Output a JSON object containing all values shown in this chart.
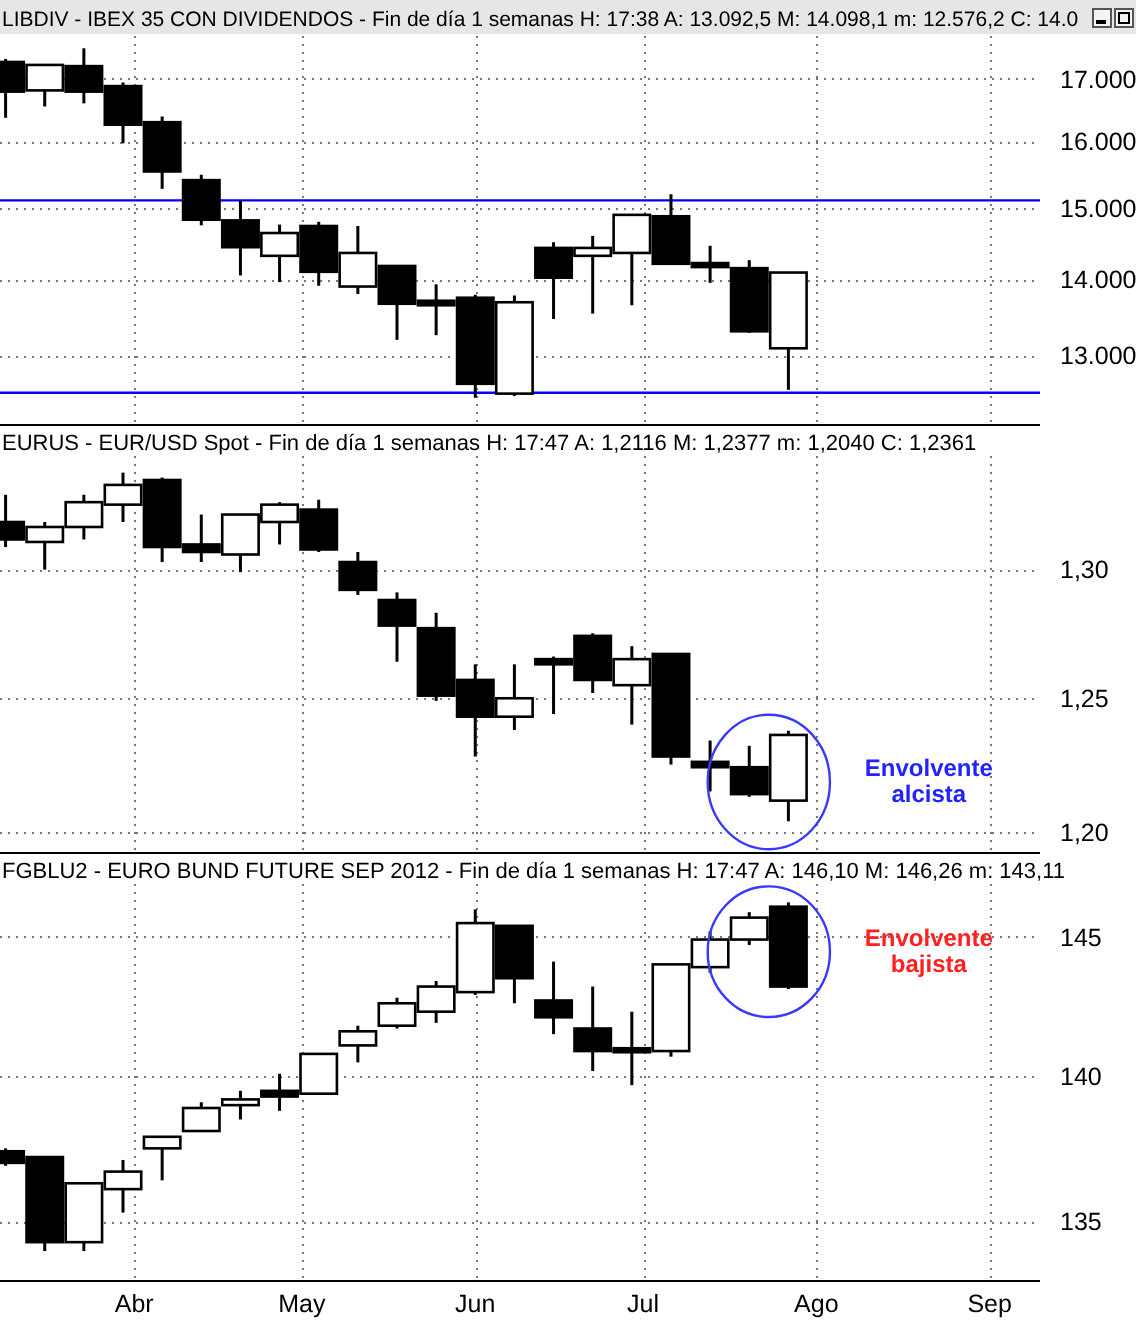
{
  "chart_data": [
    {
      "type": "candlestick",
      "title": "LIBDIV - IBEX 35 CON DIVIDENDOS - Fin de día 1 semanas  H: 17:38  A: 13.092,5  M: 14.098,1  m: 12.576,2  C: 14.0",
      "x": [
        "2012-03-09",
        "2012-03-16",
        "2012-03-23",
        "2012-03-30",
        "2012-04-06",
        "2012-04-13",
        "2012-04-20",
        "2012-04-27",
        "2012-05-04",
        "2012-05-11",
        "2012-05-18",
        "2012-05-25",
        "2012-06-01",
        "2012-06-08",
        "2012-06-15",
        "2012-06-22",
        "2012-06-29",
        "2012-07-06",
        "2012-07-13",
        "2012-07-20",
        "2012-07-27"
      ],
      "ohlc": [
        [
          17280,
          17330,
          16370,
          16790
        ],
        [
          16810,
          17230,
          16550,
          17230
        ],
        [
          17210,
          17510,
          16600,
          16790
        ],
        [
          16880,
          16940,
          15970,
          16260
        ],
        [
          16300,
          16390,
          15280,
          15540
        ],
        [
          15410,
          15490,
          14750,
          14830
        ],
        [
          14820,
          15110,
          14050,
          14440
        ],
        [
          14320,
          14760,
          13960,
          14640
        ],
        [
          14740,
          14800,
          13910,
          14100
        ],
        [
          13900,
          14740,
          13800,
          14360
        ],
        [
          14180,
          14180,
          13200,
          13670
        ],
        [
          13710,
          13930,
          13260,
          13650
        ],
        [
          13750,
          13790,
          12480,
          12650
        ],
        [
          12530,
          13780,
          12500,
          13690
        ],
        [
          14430,
          14510,
          13470,
          14020
        ],
        [
          14320,
          14600,
          13540,
          14430
        ],
        [
          14360,
          14900,
          13650,
          14900
        ],
        [
          14880,
          15200,
          14210,
          14210
        ],
        [
          14220,
          14460,
          13950,
          14200
        ],
        [
          14150,
          14260,
          13290,
          13310
        ],
        [
          13092.5,
          14098.1,
          12576.2,
          14090
        ]
      ],
      "xlim": [
        "2012-03-08",
        "2012-09-10"
      ],
      "xticks": [
        {
          "value": "2012-04-01",
          "label": null
        },
        {
          "value": "2012-05-01",
          "label": null
        },
        {
          "value": "2012-06-01",
          "label": null
        },
        {
          "value": "2012-07-01",
          "label": null
        },
        {
          "value": "2012-08-01",
          "label": null
        },
        {
          "value": "2012-09-01",
          "label": null
        }
      ],
      "ylim": [
        12190,
        17720
      ],
      "yticks": [
        {
          "value": 13000,
          "label": "13.000"
        },
        {
          "value": 14000,
          "label": "14.000"
        },
        {
          "value": 15000,
          "label": "15.000"
        },
        {
          "value": 16000,
          "label": "16.000"
        },
        {
          "value": 17000,
          "label": "17.000"
        }
      ],
      "log": true,
      "grid": true,
      "tick_labels": "y",
      "ref_lines": [
        {
          "axis": "y",
          "value": 15110,
          "color": "#0000ff"
        },
        {
          "axis": "y",
          "value": 12540,
          "color": "#0000ff"
        }
      ]
    },
    {
      "type": "candlestick",
      "title": "EURUS - EUR/USD Spot - Fin de día 1 semanas  H: 17:47  A: 1,2116  M: 1,2377  m: 1,2040  C: 1,2361",
      "x": [
        "2012-03-09",
        "2012-03-16",
        "2012-03-23",
        "2012-03-30",
        "2012-04-06",
        "2012-04-13",
        "2012-04-20",
        "2012-04-27",
        "2012-05-04",
        "2012-05-11",
        "2012-05-18",
        "2012-05-25",
        "2012-06-01",
        "2012-06-08",
        "2012-06-15",
        "2012-06-22",
        "2012-06-29",
        "2012-07-06",
        "2012-07-13",
        "2012-07-20",
        "2012-07-27"
      ],
      "ohlc": [
        [
          1.319,
          1.33,
          1.309,
          1.312
        ],
        [
          1.311,
          1.319,
          1.3,
          1.317
        ],
        [
          1.317,
          1.33,
          1.312,
          1.327
        ],
        [
          1.326,
          1.339,
          1.319,
          1.334
        ],
        [
          1.336,
          1.337,
          1.303,
          1.309
        ],
        [
          1.31,
          1.322,
          1.303,
          1.307
        ],
        [
          1.306,
          1.322,
          1.299,
          1.322
        ],
        [
          1.319,
          1.327,
          1.31,
          1.326
        ],
        [
          1.324,
          1.328,
          1.307,
          1.308
        ],
        [
          1.303,
          1.307,
          1.29,
          1.292
        ],
        [
          1.288,
          1.291,
          1.264,
          1.278
        ],
        [
          1.277,
          1.283,
          1.249,
          1.251
        ],
        [
          1.257,
          1.263,
          1.228,
          1.243
        ],
        [
          1.243,
          1.263,
          1.238,
          1.25
        ],
        [
          1.265,
          1.266,
          1.244,
          1.263
        ],
        [
          1.274,
          1.275,
          1.252,
          1.257
        ],
        [
          1.255,
          1.27,
          1.24,
          1.265
        ],
        [
          1.267,
          1.267,
          1.225,
          1.228
        ],
        [
          1.226,
          1.234,
          1.215,
          1.224
        ],
        [
          1.224,
          1.232,
          1.213,
          1.214
        ],
        [
          1.2116,
          1.2377,
          1.204,
          1.2361
        ]
      ],
      "xlim": [
        "2012-03-08",
        "2012-09-10"
      ],
      "xticks": [
        {
          "value": "2012-04-01",
          "label": null
        },
        {
          "value": "2012-05-01",
          "label": null
        },
        {
          "value": "2012-06-01",
          "label": null
        },
        {
          "value": "2012-07-01",
          "label": null
        },
        {
          "value": "2012-08-01",
          "label": null
        },
        {
          "value": "2012-09-01",
          "label": null
        }
      ],
      "ylim": [
        1.1935,
        1.359
      ],
      "yticks": [
        {
          "value": 1.2,
          "label": "1,20"
        },
        {
          "value": 1.25,
          "label": "1,25"
        },
        {
          "value": 1.3,
          "label": "1,30"
        }
      ],
      "log": true,
      "grid": true,
      "tick_labels": "y",
      "annotations": [
        "Envolvente alcista"
      ]
    },
    {
      "type": "candlestick",
      "title": "FGBLU2 - EURO BUND FUTURE  SEP 2012 - Fin de día 1 semanas  H: 17:47  A: 146,10  M: 146,26  m: 143,11",
      "x": [
        "2012-03-09",
        "2012-03-16",
        "2012-03-23",
        "2012-03-30",
        "2012-04-06",
        "2012-04-13",
        "2012-04-20",
        "2012-04-27",
        "2012-05-04",
        "2012-05-11",
        "2012-05-18",
        "2012-05-25",
        "2012-06-01",
        "2012-06-08",
        "2012-06-15",
        "2012-06-22",
        "2012-06-29",
        "2012-07-06",
        "2012-07-13",
        "2012-07-20",
        "2012-07-27"
      ],
      "ohlc": [
        [
          137.4,
          137.5,
          136.9,
          137.0
        ],
        [
          137.2,
          137.2,
          134.0,
          134.3
        ],
        [
          134.3,
          136.3,
          134.0,
          136.3
        ],
        [
          136.1,
          137.1,
          135.3,
          136.7
        ],
        [
          137.5,
          137.9,
          136.4,
          137.9
        ],
        [
          138.1,
          139.1,
          138.1,
          138.9
        ],
        [
          139.0,
          139.5,
          138.5,
          139.2
        ],
        [
          139.5,
          140.1,
          138.8,
          139.3
        ],
        [
          139.4,
          140.8,
          139.4,
          140.8
        ],
        [
          141.1,
          141.8,
          140.5,
          141.6
        ],
        [
          141.8,
          142.8,
          141.7,
          142.6
        ],
        [
          142.3,
          143.4,
          141.9,
          143.2
        ],
        [
          143.0,
          146.0,
          142.9,
          145.5
        ],
        [
          145.4,
          145.4,
          142.6,
          143.5
        ],
        [
          142.7,
          144.1,
          141.5,
          142.1
        ],
        [
          141.7,
          143.2,
          140.2,
          140.9
        ],
        [
          141.0,
          142.3,
          139.7,
          140.9
        ],
        [
          140.9,
          144.0,
          140.7,
          144.0
        ],
        [
          143.9,
          145.2,
          143.7,
          144.9
        ],
        [
          144.9,
          145.9,
          144.7,
          145.7
        ],
        [
          146.1,
          146.26,
          143.11,
          143.2
        ]
      ],
      "xlim": [
        "2012-03-08",
        "2012-09-10"
      ],
      "xticks": [
        {
          "value": "2012-04-01",
          "label": "Abr"
        },
        {
          "value": "2012-05-01",
          "label": "May"
        },
        {
          "value": "2012-06-01",
          "label": "Jun"
        },
        {
          "value": "2012-07-01",
          "label": "Jul"
        },
        {
          "value": "2012-08-01",
          "label": "Ago"
        },
        {
          "value": "2012-09-01",
          "label": "Sep"
        }
      ],
      "ylim": [
        133.03,
        148.12
      ],
      "yticks": [
        135,
        140,
        145
      ],
      "log": true,
      "grid": true,
      "annotations": [
        "Envolvente bajista"
      ]
    }
  ]
}
